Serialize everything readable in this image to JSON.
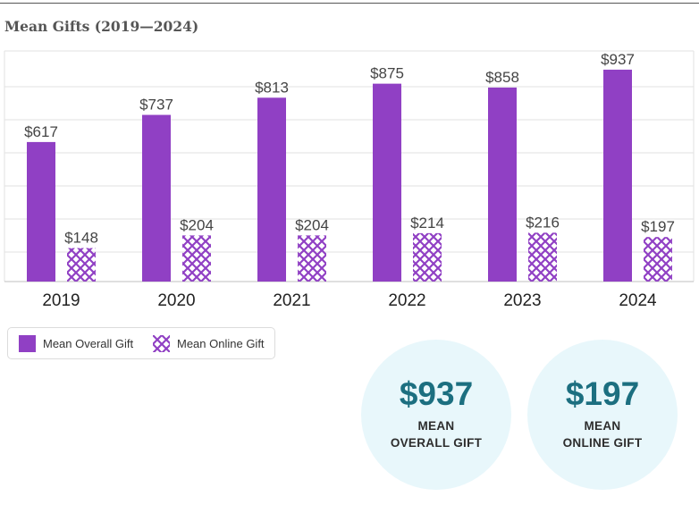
{
  "title": "Mean Gifts (2019—2024)",
  "colors": {
    "overall": "#9040c4",
    "online_hatch": "#9040c4",
    "stat_circle": "#e8f7fb",
    "stat_value": "#1c6f80",
    "grid": "#e2e2e2"
  },
  "chart_data": {
    "type": "bar",
    "categories": [
      "2019",
      "2020",
      "2021",
      "2022",
      "2023",
      "2024"
    ],
    "series": [
      {
        "name": "Mean Overall Gift",
        "values": [
          617,
          737,
          813,
          875,
          858,
          937
        ],
        "labels": [
          "$617",
          "$737",
          "$813",
          "$875",
          "$858",
          "$937"
        ]
      },
      {
        "name": "Mean Online Gift",
        "values": [
          148,
          204,
          204,
          214,
          216,
          197
        ],
        "labels": [
          "$148",
          "$204",
          "$204",
          "$214",
          "$216",
          "$197"
        ]
      }
    ],
    "ylim": [
      0,
      1000
    ],
    "grid": true,
    "legend_position": "bottom-left"
  },
  "legend": [
    {
      "label": "Mean Overall Gift",
      "icon": "solid-purple-swatch"
    },
    {
      "label": "Mean Online Gift",
      "icon": "crosshatch-swatch"
    }
  ],
  "stats": [
    {
      "value": "$937",
      "label_line1": "MEAN",
      "label_line2": "OVERALL GIFT"
    },
    {
      "value": "$197",
      "label_line1": "MEAN",
      "label_line2": "ONLINE GIFT"
    }
  ]
}
